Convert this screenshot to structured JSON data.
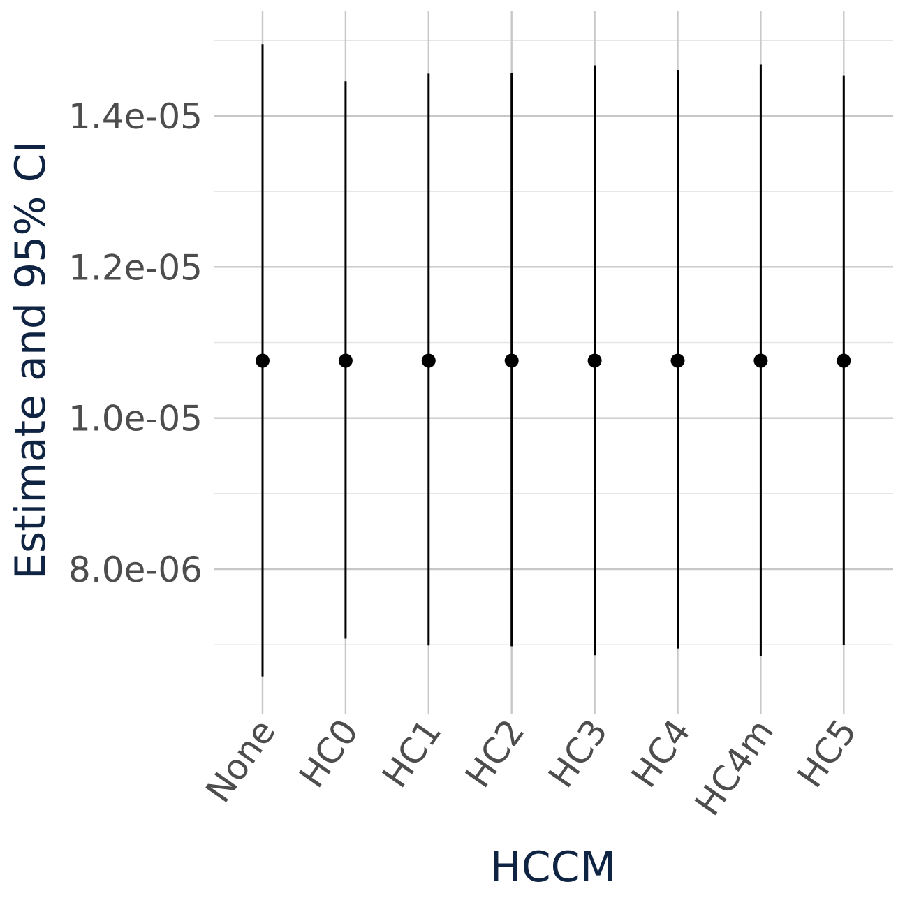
{
  "chart_data": {
    "type": "scatter",
    "title": "",
    "xlabel": "HCCM",
    "ylabel": "Estimate and 95% CI",
    "categories": [
      "None",
      "HC0",
      "HC1",
      "HC2",
      "HC3",
      "HC4",
      "HC4m",
      "HC5"
    ],
    "estimate": [
      1.076e-05,
      1.076e-05,
      1.076e-05,
      1.076e-05,
      1.076e-05,
      1.076e-05,
      1.076e-05,
      1.076e-05
    ],
    "ci_lower": [
      6.58e-06,
      7.08e-06,
      6.99e-06,
      6.98e-06,
      6.86e-06,
      6.95e-06,
      6.85e-06,
      7e-06
    ],
    "ci_upper": [
      1.495e-05,
      1.446e-05,
      1.456e-05,
      1.457e-05,
      1.467e-05,
      1.461e-05,
      1.468e-05,
      1.453e-05
    ],
    "ylim": [
      6.3e-06,
      1.51e-05
    ],
    "yticks": [
      8e-06,
      1e-05,
      1.2e-05,
      1.4e-05
    ],
    "ytick_labels": [
      "8.0e-06",
      "1.0e-05",
      "1.2e-05",
      "1.4e-05"
    ],
    "yminor": [
      7e-06,
      9e-06,
      1.1e-05,
      1.3e-05,
      1.5e-05
    ],
    "grid": true,
    "legend": "none",
    "colors": {
      "point": "#000000",
      "errbar": "#000000",
      "tick_text": "#4d4d4d",
      "axis_title": "#0f2342",
      "grid_major": "#c8c8c8",
      "grid_minor": "#e6e6e6"
    }
  }
}
